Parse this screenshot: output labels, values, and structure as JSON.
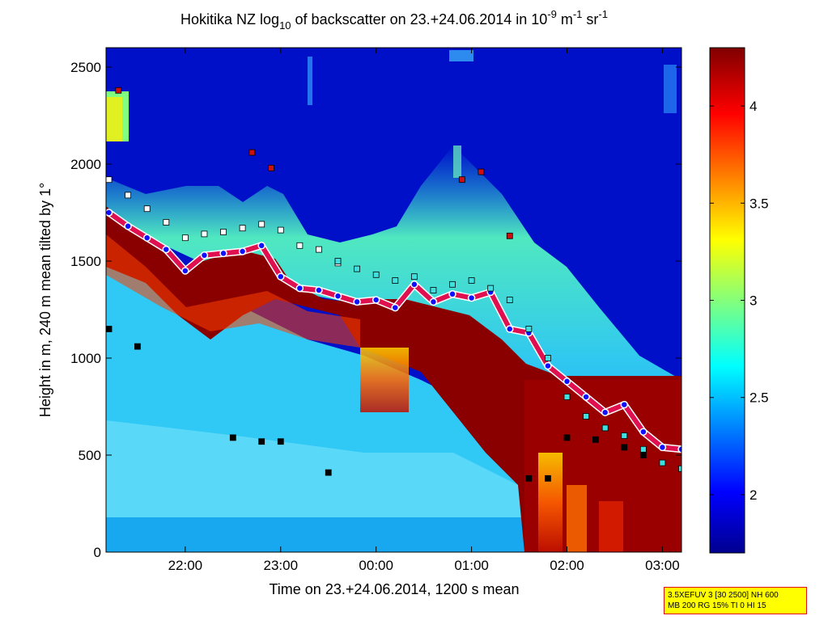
{
  "chart_data": {
    "type": "heatmap",
    "title": {
      "main": "Hokitika NZ log",
      "sub10": "10",
      "mid": " of backscatter on 23.+24.06.2014 in 10",
      "sup1": "-9",
      "m": " m",
      "sup2": "-1",
      "sr": " sr",
      "sup3": "-1"
    },
    "xlabel": "Time on 23.+24.06.2014, 1200 s mean",
    "ylabel": "Height in m, 240 m mean tilted by 1°",
    "x_ticks": [
      "22:00",
      "23:00",
      "00:00",
      "01:00",
      "02:00",
      "03:00"
    ],
    "x_range_hours": [
      21.17,
      27.2
    ],
    "y_ticks": [
      0,
      500,
      1000,
      1500,
      2000,
      2500
    ],
    "ylim": [
      0,
      2600
    ],
    "colorbar": {
      "ticks": [
        "2",
        "2.5",
        "3",
        "3.5",
        "4"
      ],
      "tick_values": [
        2,
        2.5,
        3,
        3.5,
        4
      ],
      "range": [
        1.7,
        4.3
      ]
    },
    "grid": false,
    "series": [
      {
        "marker": "circle",
        "color": "#1010ff",
        "x": [
          21.2,
          21.4,
          21.6,
          21.8,
          22.0,
          22.2,
          22.4,
          22.6,
          22.8,
          23.0,
          23.2,
          23.4,
          23.6,
          23.8,
          24.0,
          24.2,
          24.4,
          24.6,
          24.8,
          25.0,
          25.2,
          25.4,
          25.6,
          25.8,
          26.0,
          26.2,
          26.4,
          26.6,
          26.8,
          27.0,
          27.2
        ],
        "y": [
          1750,
          1680,
          1620,
          1560,
          1450,
          1530,
          1540,
          1550,
          1580,
          1420,
          1360,
          1350,
          1320,
          1290,
          1300,
          1260,
          1380,
          1290,
          1330,
          1310,
          1340,
          1150,
          1130,
          960,
          880,
          800,
          720,
          760,
          620,
          540,
          530
        ]
      },
      {
        "marker": "square",
        "color": "#ffffff",
        "x": [
          21.2,
          21.4,
          21.6,
          21.8,
          22.0,
          22.2,
          22.4,
          22.6,
          22.8,
          23.0,
          23.2,
          23.4,
          23.6
        ],
        "y": [
          1920,
          1840,
          1770,
          1700,
          1620,
          1640,
          1650,
          1670,
          1690,
          1660,
          1580,
          1560,
          1490
        ]
      },
      {
        "marker": "square",
        "color": "#40e0e0",
        "x": [
          23.6,
          23.8,
          24.0,
          24.2,
          24.4,
          24.6,
          24.8,
          25.0,
          25.2,
          25.4,
          25.6,
          25.8,
          26.0,
          26.2,
          26.4,
          26.6,
          26.8,
          27.0,
          27.2
        ],
        "y": [
          1500,
          1460,
          1430,
          1400,
          1420,
          1350,
          1380,
          1400,
          1360,
          1300,
          1150,
          1000,
          800,
          700,
          640,
          600,
          530,
          460,
          430
        ]
      },
      {
        "marker": "square",
        "color": "#000000",
        "x": [
          21.2,
          21.5,
          22.5,
          22.8,
          23.0,
          23.5,
          25.6,
          25.8,
          26.0,
          26.3,
          26.6,
          26.8
        ],
        "y": [
          1150,
          1060,
          590,
          570,
          570,
          410,
          380,
          380,
          590,
          580,
          540,
          500
        ]
      },
      {
        "marker": "square",
        "color": "#cc1010",
        "x": [
          21.3,
          22.7,
          22.9,
          24.9,
          25.1,
          25.4
        ],
        "y": [
          2380,
          2060,
          1980,
          1920,
          1960,
          1630
        ]
      }
    ]
  },
  "info_box": {
    "line1": "3.5XEFUV 3 [30 2500] NH 600",
    "line2": "MB 200 RG 15% TI 0 HI 15"
  }
}
